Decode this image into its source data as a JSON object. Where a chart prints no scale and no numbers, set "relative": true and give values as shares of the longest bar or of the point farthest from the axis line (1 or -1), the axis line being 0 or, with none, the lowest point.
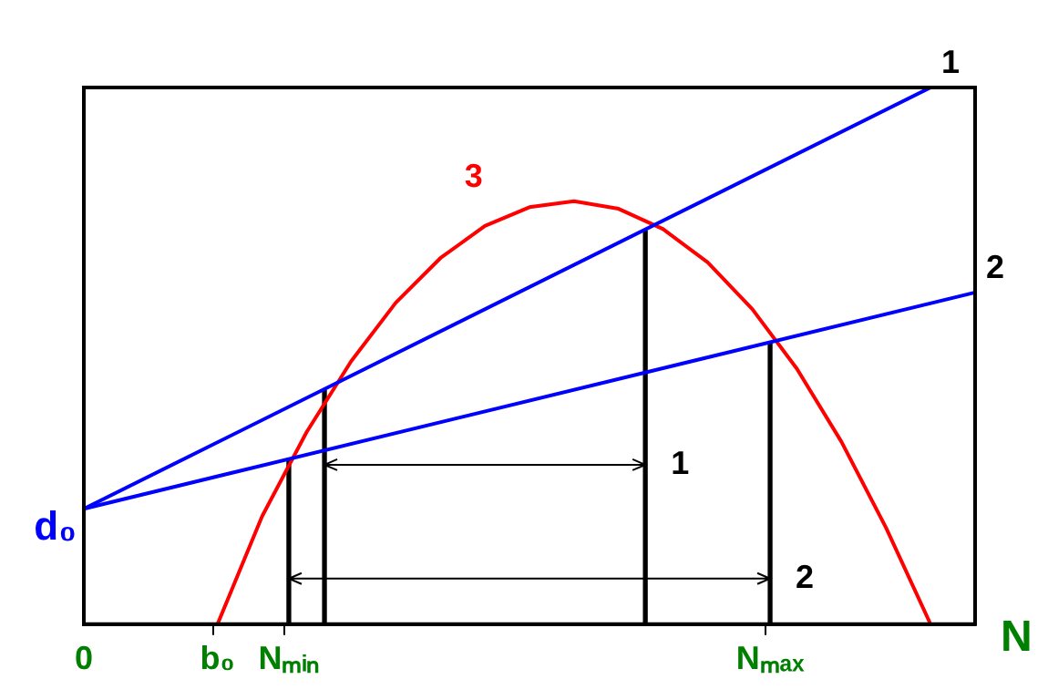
{
  "chart_data": {
    "type": "line",
    "relative": true,
    "xlabel": "N",
    "categories": [
      "0",
      null,
      null,
      null,
      null,
      null,
      null,
      null,
      null,
      null,
      null,
      null,
      null,
      null,
      null,
      "b₀",
      null,
      null,
      null,
      null,
      null,
      null,
      null,
      "Nₘᵢₙ",
      null,
      null,
      null,
      null,
      null,
      null,
      null,
      null,
      null,
      null,
      null,
      null,
      null,
      null,
      null,
      null,
      null,
      null,
      null,
      null,
      null,
      null,
      null,
      null,
      null,
      null,
      null,
      null,
      null,
      null,
      null,
      null,
      null,
      null,
      null,
      null,
      null,
      null,
      null,
      null,
      null,
      null,
      null,
      null,
      null,
      null,
      null,
      null,
      null,
      null,
      null,
      null,
      null,
      "Nₘₐₓ",
      null,
      null,
      null,
      null,
      null,
      null,
      null,
      null,
      null,
      null,
      null,
      null,
      null,
      null,
      null,
      null,
      null,
      null,
      null,
      null,
      null,
      null,
      null
    ],
    "series": [
      {
        "name": "1",
        "color": "#0000ff",
        "values": [
          0.215,
          null,
          null,
          null,
          null,
          null,
          null,
          null,
          null,
          null,
          null,
          null,
          null,
          null,
          null,
          null,
          null,
          null,
          null,
          null,
          null,
          null,
          null,
          null,
          null,
          null,
          null,
          null,
          null,
          null,
          null,
          null,
          null,
          null,
          null,
          null,
          null,
          null,
          null,
          null,
          null,
          null,
          null,
          null,
          null,
          null,
          null,
          null,
          null,
          null,
          null,
          null,
          null,
          null,
          null,
          null,
          null,
          null,
          null,
          null,
          null,
          null,
          null,
          null,
          null,
          null,
          null,
          null,
          null,
          null,
          null,
          null,
          null,
          null,
          null,
          null,
          null,
          null,
          null,
          null,
          null,
          null,
          null,
          null,
          null,
          null,
          null,
          null,
          null,
          null,
          null,
          null,
          null,
          null,
          null,
          1,
          null,
          null,
          null,
          null,
          null
        ]
      },
      {
        "name": "2",
        "color": "#0000ff",
        "values": [
          0.215,
          null,
          null,
          null,
          null,
          null,
          null,
          null,
          null,
          null,
          null,
          null,
          null,
          null,
          null,
          null,
          null,
          null,
          null,
          null,
          null,
          null,
          null,
          null,
          null,
          null,
          null,
          null,
          null,
          null,
          null,
          null,
          null,
          null,
          null,
          null,
          null,
          null,
          null,
          null,
          null,
          null,
          null,
          null,
          null,
          null,
          null,
          null,
          null,
          null,
          null,
          null,
          null,
          null,
          null,
          null,
          null,
          null,
          null,
          null,
          null,
          null,
          null,
          null,
          null,
          null,
          null,
          null,
          null,
          null,
          null,
          null,
          null,
          null,
          null,
          null,
          null,
          null,
          null,
          null,
          null,
          null,
          null,
          null,
          null,
          null,
          null,
          null,
          null,
          null,
          null,
          null,
          null,
          null,
          null,
          null,
          null,
          null,
          null,
          null,
          0.618
        ]
      },
      {
        "name": "3",
        "color": "#ff0000",
        "values": [
          null,
          null,
          null,
          null,
          null,
          null,
          null,
          null,
          null,
          null,
          null,
          null,
          null,
          null,
          null,
          0,
          null,
          null,
          null,
          null,
          0.201,
          null,
          null,
          null,
          null,
          0.358,
          null,
          null,
          null,
          null,
          0.49,
          null,
          null,
          null,
          null,
          0.599,
          null,
          null,
          null,
          null,
          0.682,
          null,
          null,
          null,
          null,
          0.742,
          null,
          null,
          null,
          null,
          0.777,
          null,
          null,
          null,
          null,
          0.788,
          null,
          null,
          null,
          null,
          0.774,
          null,
          null,
          null,
          null,
          0.736,
          null,
          null,
          null,
          null,
          0.674,
          null,
          null,
          null,
          null,
          0.587,
          null,
          null,
          null,
          null,
          0.476,
          null,
          null,
          null,
          null,
          0.34,
          null,
          null,
          null,
          null,
          0.18,
          null,
          null,
          null,
          null,
          0,
          null,
          null,
          null,
          null,
          null
        ]
      },
      {
        "type": "bar",
        "color": "#000000",
        "values": [
          null,
          null,
          null,
          null,
          null,
          null,
          null,
          null,
          null,
          null,
          null,
          null,
          null,
          null,
          null,
          null,
          null,
          null,
          null,
          null,
          null,
          null,
          null,
          0.308,
          null,
          null,
          null,
          0.436,
          null,
          null,
          null,
          null,
          null,
          null,
          null,
          null,
          null,
          null,
          null,
          null,
          null,
          null,
          null,
          null,
          null,
          null,
          null,
          null,
          null,
          null,
          null,
          null,
          null,
          null,
          null,
          null,
          null,
          null,
          null,
          null,
          null,
          null,
          null,
          0.733,
          null,
          null,
          null,
          null,
          null,
          null,
          null,
          null,
          null,
          null,
          null,
          null,
          null,
          0.524,
          null,
          null,
          null,
          null,
          null,
          null,
          null,
          null,
          null,
          null,
          null,
          null,
          null,
          null,
          null,
          null,
          null,
          null,
          null,
          null,
          null,
          null,
          null
        ]
      }
    ],
    "annotations": [
      "d₀",
      "1",
      "2"
    ],
    "legend": false,
    "marker": "none",
    "line_style": "solid"
  }
}
